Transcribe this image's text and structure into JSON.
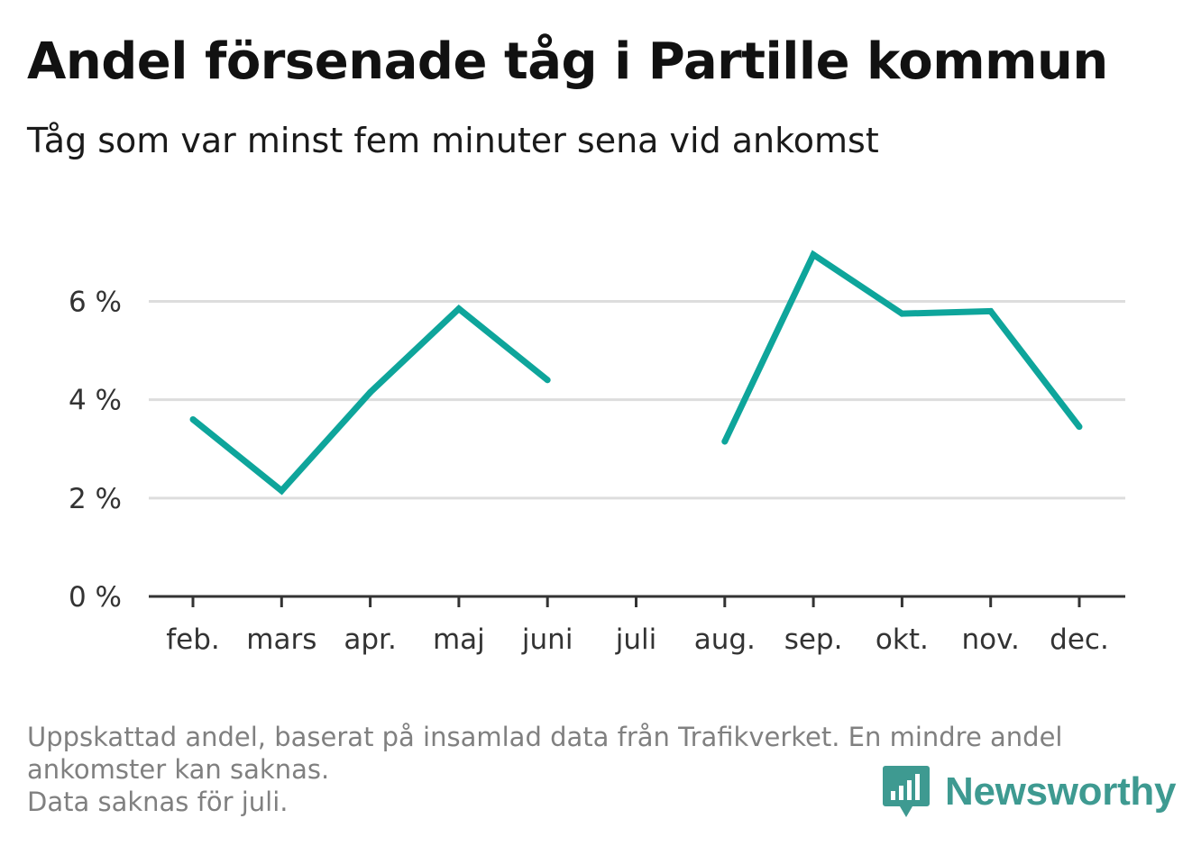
{
  "header": {
    "title": "Andel försenade tåg i Partille kommun",
    "subtitle": "Tåg som var minst fem minuter sena vid ankomst"
  },
  "chart_data": {
    "type": "line",
    "title": "Andel försenade tåg i Partille kommun",
    "subtitle": "Tåg som var minst fem minuter sena vid ankomst",
    "categories": [
      "feb.",
      "mars",
      "apr.",
      "maj",
      "juni",
      "juli",
      "aug.",
      "sep.",
      "okt.",
      "nov.",
      "dec."
    ],
    "series": [
      {
        "values": [
          3.6,
          2.15,
          4.15,
          5.85,
          4.4,
          null,
          3.15,
          6.95,
          5.75,
          5.8,
          3.45
        ],
        "color": "#0ea59b"
      }
    ],
    "y_ticks": [
      {
        "value": 0,
        "label": "0 %"
      },
      {
        "value": 2,
        "label": "2 %"
      },
      {
        "value": 4,
        "label": "4 %"
      },
      {
        "value": 6,
        "label": "6 %"
      }
    ],
    "ylim": [
      0,
      7.2
    ],
    "xlabel": "",
    "ylabel": "",
    "grid": true,
    "missing_months": [
      "juli"
    ]
  },
  "colors": {
    "line": "#0ea59b",
    "grid": "#dddddd",
    "axis": "#333333",
    "footnote": "#808080",
    "brand": "#3e9a91"
  },
  "footnote": {
    "line1": "Uppskattad andel, baserat på insamlad data från Trafikverket. En mindre andel",
    "line2": "ankomster kan saknas.",
    "line3": "Data saknas för juli."
  },
  "brand": {
    "name": "Newsworthy",
    "icon": "bar-chart-speech-bubble-icon"
  }
}
